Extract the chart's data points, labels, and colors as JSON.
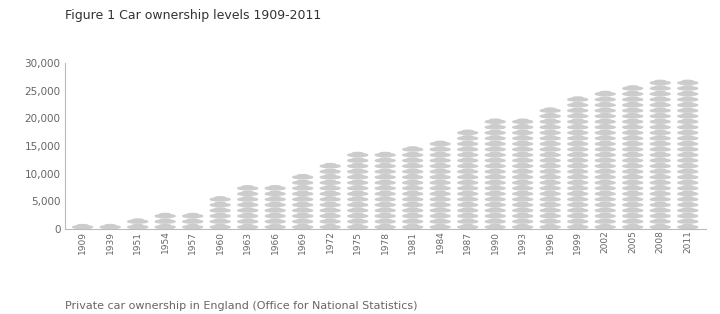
{
  "title": "Figure 1 Car ownership levels 1909-2011",
  "caption": "Private car ownership in England (Office for National Statistics)",
  "years": [
    1909,
    1939,
    1951,
    1954,
    1957,
    1960,
    1963,
    1966,
    1969,
    1972,
    1975,
    1978,
    1981,
    1984,
    1987,
    1990,
    1993,
    1996,
    1999,
    2002,
    2005,
    2008,
    2011
  ],
  "values": [
    1,
    1,
    2,
    3,
    3,
    6,
    8,
    8,
    10,
    12,
    14,
    14,
    15,
    16,
    18,
    20,
    20,
    22,
    24,
    25,
    26,
    27,
    27
  ],
  "car_color": "#cccccc",
  "car_unit": 1000,
  "bg_color": "#ffffff",
  "title_fontsize": 9,
  "caption_fontsize": 8,
  "tick_fontsize": 6.5,
  "ytick_fontsize": 7.5,
  "ylim": [
    0,
    30000
  ],
  "yticks": [
    0,
    5000,
    10000,
    15000,
    20000,
    25000,
    30000
  ]
}
